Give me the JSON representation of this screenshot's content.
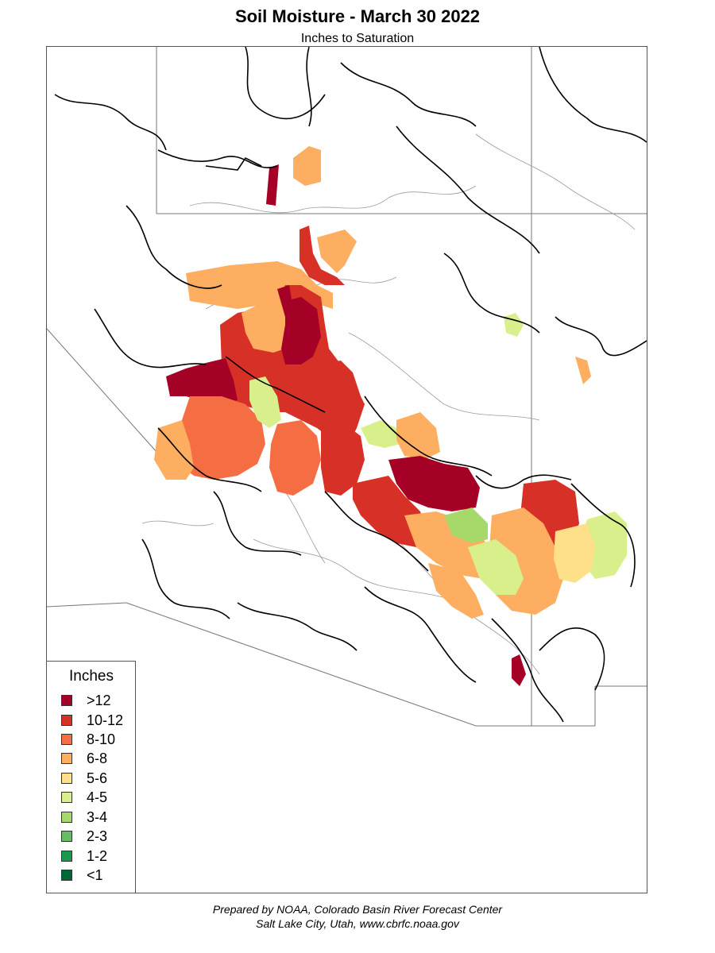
{
  "title": "Soil Moisture - March 30 2022",
  "subtitle": "Inches to Saturation",
  "legend": {
    "title": "Inches",
    "items": [
      {
        "label": ">12",
        "color": "#a50026"
      },
      {
        "label": "10-12",
        "color": "#d73027"
      },
      {
        "label": "8-10",
        "color": "#f46d43"
      },
      {
        "label": "6-8",
        "color": "#fdae61"
      },
      {
        "label": "5-6",
        "color": "#fee08b"
      },
      {
        "label": "4-5",
        "color": "#d9ef8b"
      },
      {
        "label": "3-4",
        "color": "#a6d96a"
      },
      {
        "label": "2-3",
        "color": "#66bd63"
      },
      {
        "label": "1-2",
        "color": "#1a9850"
      },
      {
        "label": "<1",
        "color": "#006837"
      }
    ]
  },
  "footer": {
    "line1": "Prepared by NOAA, Colorado Basin River Forecast Center",
    "line2": "Salt Lake City, Utah, www.cbrfc.noaa.gov"
  }
}
